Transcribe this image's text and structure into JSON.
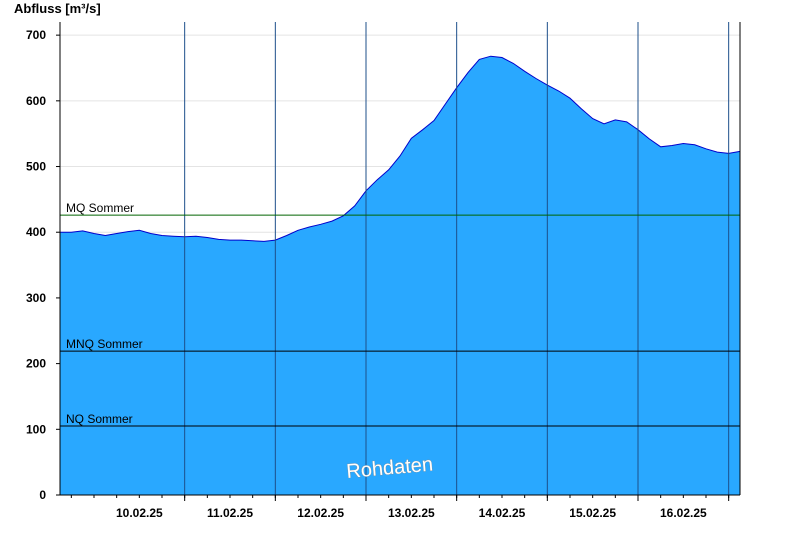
{
  "chart_data": {
    "type": "area",
    "ylabel": "Abfluss [m³/s]",
    "ylim": [
      0,
      720
    ],
    "yticks": [
      0,
      100,
      200,
      300,
      400,
      500,
      600,
      700
    ],
    "xlim": [
      "09.02.25 15:00",
      "16.02.25 23:00"
    ],
    "xticks": [
      "10.02.25",
      "11.02.25",
      "12.02.25",
      "13.02.25",
      "14.02.25",
      "15.02.25",
      "16.02.25"
    ],
    "grid": {
      "horizontal": true,
      "vertical_at_midnight": true
    },
    "colors": {
      "fill": "#29a8ff",
      "line": "#0000cc",
      "reference": "#000000",
      "mq": "#006400"
    },
    "series": [
      {
        "x_hours": [
          0,
          3,
          6,
          9,
          12,
          15,
          18,
          21,
          24,
          27,
          30,
          33,
          36,
          39,
          42,
          45,
          48,
          51,
          54,
          57,
          60,
          63,
          66,
          69,
          72,
          75,
          78,
          81,
          84,
          87,
          90,
          93,
          96,
          99,
          102,
          105,
          108,
          111,
          114,
          117,
          120,
          123,
          126,
          129,
          132,
          135,
          138,
          141,
          144,
          147,
          150,
          153,
          156,
          159,
          162,
          165,
          168,
          171,
          174,
          177,
          180
        ],
        "values": [
          400,
          400,
          402,
          398,
          395,
          398,
          401,
          403,
          398,
          395,
          394,
          393,
          394,
          392,
          389,
          388,
          388,
          387,
          386,
          388,
          395,
          403,
          408,
          412,
          417,
          425,
          440,
          463,
          480,
          495,
          516,
          543,
          556,
          570,
          595,
          620,
          643,
          663,
          668,
          666,
          657,
          645,
          634,
          624,
          615,
          604,
          588,
          573,
          565,
          571,
          568,
          556,
          542,
          530,
          532,
          535,
          533,
          527,
          522,
          520,
          523
        ]
      }
    ],
    "reference_lines": [
      {
        "label": "MQ Sommer",
        "value": 426
      },
      {
        "label": "MNQ Sommer",
        "value": 219
      },
      {
        "label": "NQ Sommer",
        "value": 105
      }
    ],
    "annotations": [
      "Rohdaten"
    ]
  }
}
